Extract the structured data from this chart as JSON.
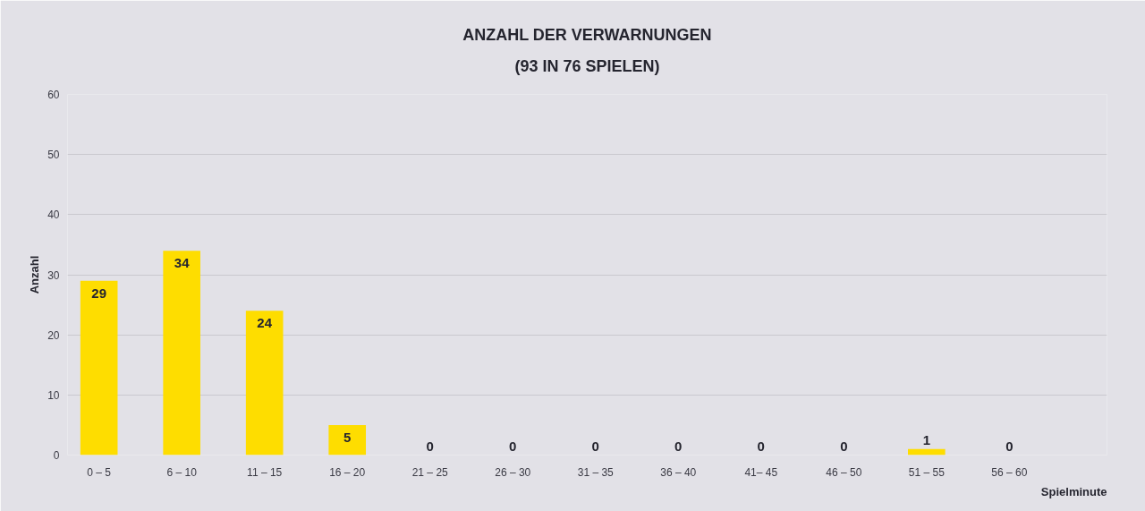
{
  "chart_data": {
    "type": "bar",
    "title": "ANZAHL DER VERWARNUNGEN",
    "subtitle": "(93 IN 76 SPIELEN)",
    "xlabel": "Spielminute",
    "ylabel": "Anzahl",
    "categories": [
      "0 – 5",
      "6 – 10",
      "11 – 15",
      "16 – 20",
      "21 – 25",
      "26 – 30",
      "31 – 35",
      "36 – 40",
      "41– 45",
      "46 – 50",
      "51 – 55",
      "56 – 60"
    ],
    "values": [
      29,
      34,
      24,
      5,
      0,
      0,
      0,
      0,
      0,
      0,
      1,
      0
    ],
    "color": "#fedd00",
    "ylim": [
      0,
      60
    ],
    "yticks": [
      0,
      10,
      20,
      30,
      40,
      50,
      60
    ],
    "grid": "y",
    "data_labels": true
  }
}
